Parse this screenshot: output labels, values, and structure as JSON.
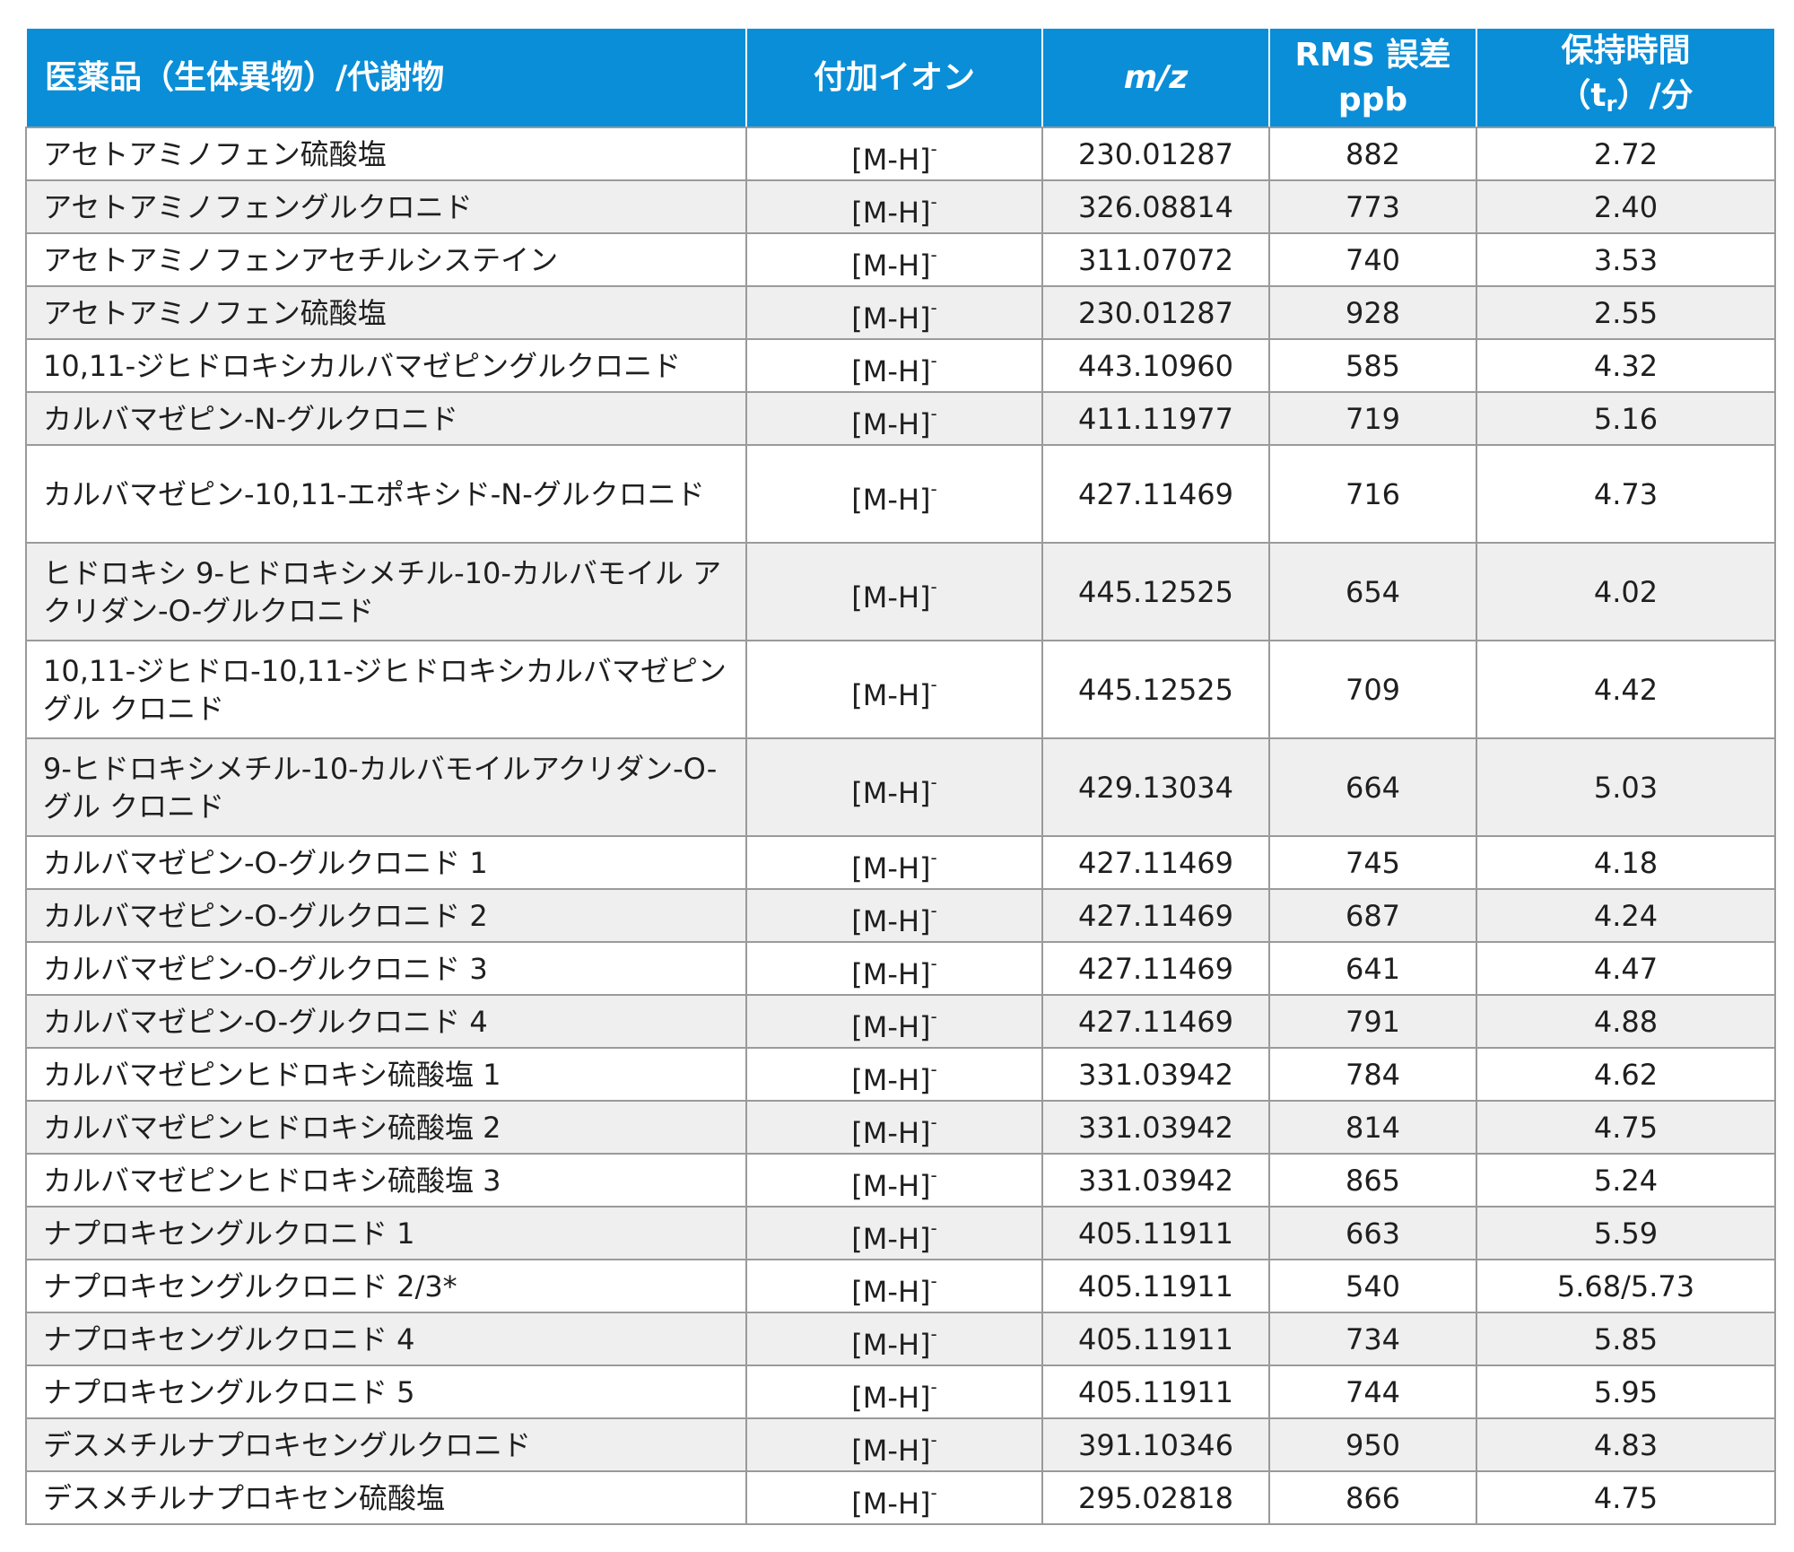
{
  "table": {
    "headers": {
      "compound": "医薬品（生体異物）/代謝物",
      "adduct": "付加イオン",
      "mz": "m/z",
      "rms_line1": "RMS 誤差",
      "rms_line2": "ppb",
      "rt_line1": "保持時間",
      "rt_open": "（t",
      "rt_sub": "r",
      "rt_close": "）/分"
    },
    "adduct_base": "[M-H]",
    "adduct_sup": "-",
    "rows": [
      {
        "compound": "アセトアミノフェン硫酸塩",
        "mz": "230.01287",
        "rms": "882",
        "rt": "2.72"
      },
      {
        "compound": "アセトアミノフェングルクロニド",
        "mz": "326.08814",
        "rms": "773",
        "rt": "2.40"
      },
      {
        "compound": "アセトアミノフェンアセチルシステイン",
        "mz": "311.07072",
        "rms": "740",
        "rt": "3.53"
      },
      {
        "compound": "アセトアミノフェン硫酸塩",
        "mz": "230.01287",
        "rms": "928",
        "rt": "2.55"
      },
      {
        "compound": "10,11-ジヒドロキシカルバマゼピングルクロニド",
        "mz": "443.10960",
        "rms": "585",
        "rt": "4.32"
      },
      {
        "compound": "カルバマゼピン-N-グルクロニド",
        "mz": "411.11977",
        "rms": "719",
        "rt": "5.16"
      },
      {
        "compound": "カルバマゼピン-10,11-エポキシド-N-グルクロニド",
        "mz": "427.11469",
        "rms": "716",
        "rt": "4.73",
        "tall": true
      },
      {
        "compound": "ヒドロキシ 9-ヒドロキシメチル-10-カルバモイル アクリダン-O-グルクロニド",
        "mz": "445.12525",
        "rms": "654",
        "rt": "4.02",
        "tall": true
      },
      {
        "compound": "10,11-ジヒドロ-10,11-ジヒドロキシカルバマゼピングル クロニド",
        "mz": "445.12525",
        "rms": "709",
        "rt": "4.42",
        "tall": true
      },
      {
        "compound": "9-ヒドロキシメチル-10-カルバモイルアクリダン-O-グル クロニド",
        "mz": "429.13034",
        "rms": "664",
        "rt": "5.03",
        "tall": true
      },
      {
        "compound": "カルバマゼピン-O-グルクロニド 1",
        "mz": "427.11469",
        "rms": "745",
        "rt": "4.18"
      },
      {
        "compound": "カルバマゼピン-O-グルクロニド 2",
        "mz": "427.11469",
        "rms": "687",
        "rt": "4.24"
      },
      {
        "compound": "カルバマゼピン-O-グルクロニド 3",
        "mz": "427.11469",
        "rms": "641",
        "rt": "4.47"
      },
      {
        "compound": "カルバマゼピン-O-グルクロニド 4",
        "mz": "427.11469",
        "rms": "791",
        "rt": "4.88"
      },
      {
        "compound": "カルバマゼピンヒドロキシ硫酸塩 1",
        "mz": "331.03942",
        "rms": "784",
        "rt": "4.62"
      },
      {
        "compound": "カルバマゼピンヒドロキシ硫酸塩 2",
        "mz": "331.03942",
        "rms": "814",
        "rt": "4.75"
      },
      {
        "compound": "カルバマゼピンヒドロキシ硫酸塩 3",
        "mz": "331.03942",
        "rms": "865",
        "rt": "5.24"
      },
      {
        "compound": "ナプロキセングルクロニド 1",
        "mz": "405.11911",
        "rms": "663",
        "rt": "5.59"
      },
      {
        "compound": "ナプロキセングルクロニド 2/3*",
        "mz": "405.11911",
        "rms": "540",
        "rt": "5.68/5.73"
      },
      {
        "compound": "ナプロキセングルクロニド 4",
        "mz": "405.11911",
        "rms": "734",
        "rt": "5.85"
      },
      {
        "compound": "ナプロキセングルクロニド 5",
        "mz": "405.11911",
        "rms": "744",
        "rt": "5.95"
      },
      {
        "compound": "デスメチルナプロキセングルクロニド",
        "mz": "391.10346",
        "rms": "950",
        "rt": "4.83"
      },
      {
        "compound": "デスメチルナプロキセン硫酸塩",
        "mz": "295.02818",
        "rms": "866",
        "rt": "4.75"
      }
    ]
  },
  "colors": {
    "header_bg": "#0a8ed8",
    "header_text": "#ffffff",
    "row_alt_bg": "#efefef",
    "border": "#9a9a9a"
  }
}
